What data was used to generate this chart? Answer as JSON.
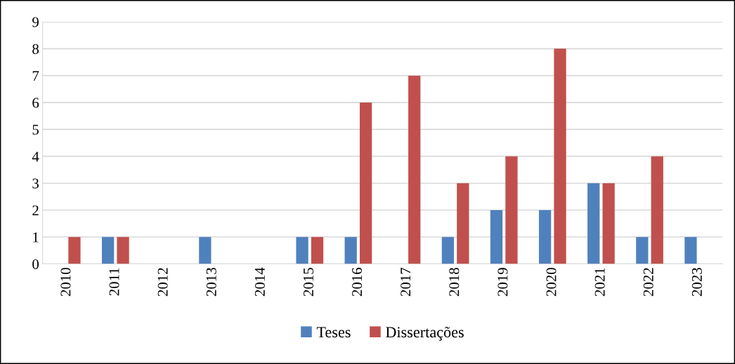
{
  "chart_data": {
    "type": "bar",
    "categories": [
      "2010",
      "2011",
      "2012",
      "2013",
      "2014",
      "2015",
      "2016",
      "2017",
      "2018",
      "2019",
      "2020",
      "2021",
      "2022",
      "2023"
    ],
    "series": [
      {
        "name": "Teses",
        "color": "#4f81bd",
        "values": [
          0,
          1,
          0,
          1,
          0,
          1,
          1,
          0,
          1,
          2,
          2,
          3,
          1,
          1
        ]
      },
      {
        "name": "Dissertações",
        "color": "#c0504d",
        "values": [
          1,
          1,
          0,
          0,
          0,
          1,
          6,
          7,
          3,
          4,
          8,
          3,
          4,
          0
        ]
      }
    ],
    "ylim": [
      0,
      9
    ],
    "yticks": [
      0,
      1,
      2,
      3,
      4,
      5,
      6,
      7,
      8,
      9
    ],
    "grid": "y",
    "legend": "bottom"
  }
}
